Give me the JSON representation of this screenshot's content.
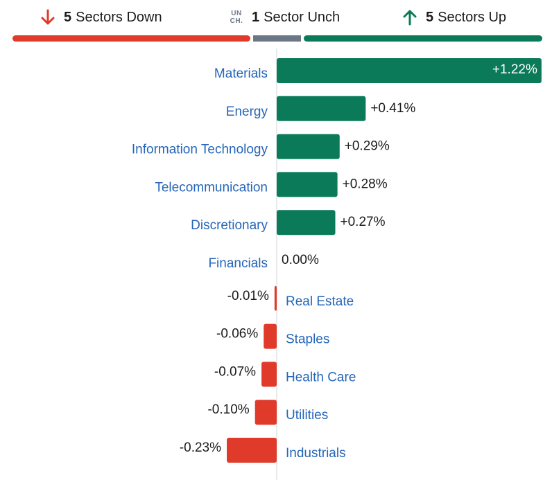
{
  "summary": {
    "down": {
      "count": "5",
      "label": "Sectors Down",
      "color": "#e03a2a"
    },
    "unch": {
      "icon_text_1": "UN",
      "icon_text_2": "CH.",
      "count": "1",
      "label": "Sector Unch",
      "color": "#6b7785"
    },
    "up": {
      "count": "5",
      "label": "Sectors Up",
      "color": "#0a7a58"
    }
  },
  "chart_data": {
    "type": "bar",
    "orientation": "horizontal",
    "categories": [
      "Materials",
      "Energy",
      "Information Technology",
      "Telecommunication",
      "Discretionary",
      "Financials",
      "Real Estate",
      "Staples",
      "Health Care",
      "Utilities",
      "Industrials"
    ],
    "values": [
      1.22,
      0.41,
      0.29,
      0.28,
      0.27,
      0.0,
      -0.01,
      -0.06,
      -0.07,
      -0.1,
      -0.23
    ],
    "value_labels": [
      "+1.22%",
      "+0.41%",
      "+0.29%",
      "+0.28%",
      "+0.27%",
      "0.00%",
      "-0.01%",
      "-0.06%",
      "-0.07%",
      "-0.10%",
      "-0.23%"
    ],
    "colors": {
      "positive": "#0a7a58",
      "negative": "#e03a2a",
      "zero_line": "#cfd3d7"
    }
  }
}
